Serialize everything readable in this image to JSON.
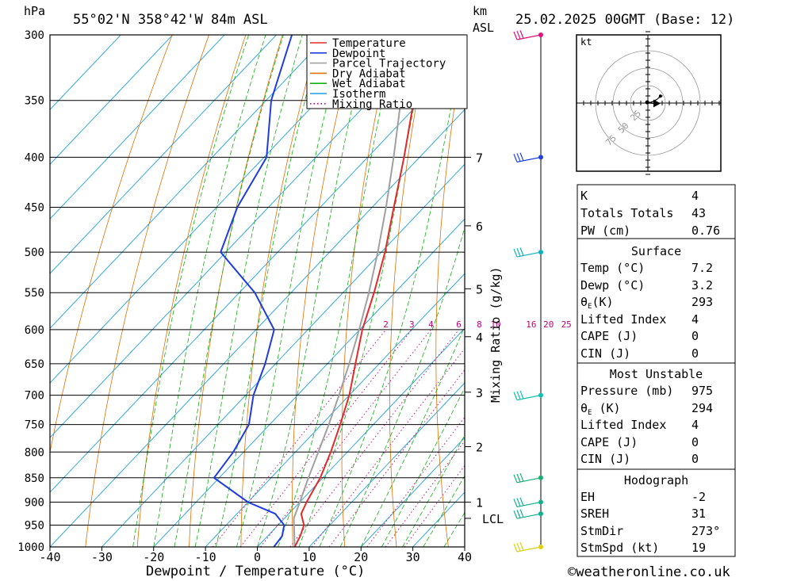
{
  "header": {
    "pressure_unit": "hPa",
    "location": "55°02'N  358°42'W  84m  ASL",
    "height_unit": "km",
    "height_ref": "ASL",
    "datetime": "25.02.2025  00GMT  (Base: 12)"
  },
  "footer": {
    "copyright": "©weatheronline.co.uk"
  },
  "chart_data": {
    "type": "line",
    "subtype": "skew-T log-P",
    "xlabel": "Dewpoint / Temperature (°C)",
    "ylabel": "hPa",
    "xlim": [
      -40,
      40
    ],
    "ylim": [
      1000,
      300
    ],
    "x_ticks": [
      "-40",
      "-30",
      "-20",
      "-10",
      "0",
      "10",
      "20",
      "30",
      "40"
    ],
    "pressure_levels": [
      300,
      350,
      400,
      450,
      500,
      550,
      600,
      650,
      700,
      750,
      800,
      850,
      900,
      950,
      1000
    ],
    "km_ticks": [
      {
        "km": "1",
        "p": 900
      },
      {
        "km": "2",
        "p": 790
      },
      {
        "km": "3",
        "p": 695
      },
      {
        "km": "4",
        "p": 610
      },
      {
        "km": "5",
        "p": 545
      },
      {
        "km": "6",
        "p": 470
      },
      {
        "km": "7",
        "p": 400
      }
    ],
    "lcl": {
      "label": "LCL",
      "p": 935
    },
    "mixing_ratio_axis_label": "Mixing Ratio (g/kg)",
    "mixing_ratio_labels": [
      "2",
      "3",
      "4",
      "6",
      "8",
      "10",
      "16",
      "20",
      "25"
    ],
    "legend": [
      {
        "name": "Temperature",
        "color": "#e32a2a",
        "style": "solid"
      },
      {
        "name": "Dewpoint",
        "color": "#1f3ce0",
        "style": "solid"
      },
      {
        "name": "Parcel Trajectory",
        "color": "#a0a0a0",
        "style": "solid"
      },
      {
        "name": "Dry Adiabat",
        "color": "#e07000",
        "style": "solid"
      },
      {
        "name": "Wet Adiabat",
        "color": "#10b010",
        "style": "solid"
      },
      {
        "name": "Isotherm",
        "color": "#1aa0e0",
        "style": "solid"
      },
      {
        "name": "Mixing Ratio",
        "color": "#c0007a",
        "style": "dotted"
      }
    ],
    "temperature": [
      {
        "p": 1000,
        "t": 7.2
      },
      {
        "p": 975,
        "t": 6.3
      },
      {
        "p": 950,
        "t": 5.0
      },
      {
        "p": 925,
        "t": 2.4
      },
      {
        "p": 900,
        "t": 1.3
      },
      {
        "p": 850,
        "t": -0.5
      },
      {
        "p": 800,
        "t": -3.2
      },
      {
        "p": 750,
        "t": -6.4
      },
      {
        "p": 700,
        "t": -10.0
      },
      {
        "p": 650,
        "t": -14.6
      },
      {
        "p": 600,
        "t": -19.5
      },
      {
        "p": 550,
        "t": -24.0
      },
      {
        "p": 500,
        "t": -29.3
      },
      {
        "p": 450,
        "t": -35.8
      },
      {
        "p": 400,
        "t": -43.0
      },
      {
        "p": 350,
        "t": -51.5
      },
      {
        "p": 325,
        "t": -53.0
      },
      {
        "p": 300,
        "t": -56.0
      }
    ],
    "dewpoint": [
      {
        "p": 1000,
        "t": 3.2
      },
      {
        "p": 975,
        "t": 2.8
      },
      {
        "p": 950,
        "t": 1.2
      },
      {
        "p": 925,
        "t": -2.6
      },
      {
        "p": 900,
        "t": -10.0
      },
      {
        "p": 850,
        "t": -21.0
      },
      {
        "p": 800,
        "t": -22.0
      },
      {
        "p": 750,
        "t": -24.0
      },
      {
        "p": 700,
        "t": -28.5
      },
      {
        "p": 650,
        "t": -32.0
      },
      {
        "p": 600,
        "t": -36.5
      },
      {
        "p": 550,
        "t": -47.0
      },
      {
        "p": 500,
        "t": -61.0
      },
      {
        "p": 450,
        "t": -66.0
      },
      {
        "p": 400,
        "t": -69.5
      },
      {
        "p": 350,
        "t": -79.0
      },
      {
        "p": 300,
        "t": -87.0
      }
    ],
    "parcel": [
      {
        "p": 1000,
        "t": 7.2
      },
      {
        "p": 935,
        "t": 1.8
      },
      {
        "p": 900,
        "t": 0.0
      },
      {
        "p": 850,
        "t": -2.8
      },
      {
        "p": 800,
        "t": -5.6
      },
      {
        "p": 750,
        "t": -8.6
      },
      {
        "p": 700,
        "t": -12.0
      },
      {
        "p": 650,
        "t": -15.8
      },
      {
        "p": 600,
        "t": -20.1
      },
      {
        "p": 550,
        "t": -25.0
      },
      {
        "p": 500,
        "t": -30.7
      },
      {
        "p": 450,
        "t": -37.3
      },
      {
        "p": 400,
        "t": -45.0
      },
      {
        "p": 350,
        "t": -54.0
      },
      {
        "p": 300,
        "t": -64.5
      }
    ],
    "hodograph": {
      "unit": "kt",
      "ring_labels": [
        "25",
        "50",
        "75"
      ],
      "ring_speeds": [
        25,
        50,
        75
      ],
      "trace": [
        {
          "u": -1,
          "v": 1
        },
        {
          "u": 4,
          "v": 1
        },
        {
          "u": 9,
          "v": 3
        },
        {
          "u": 14,
          "v": 6
        },
        {
          "u": 15,
          "v": 7
        },
        {
          "u": 16,
          "v": 8
        },
        {
          "u": 19,
          "v": 9
        },
        {
          "u": 20,
          "v": 10
        },
        {
          "u": 18,
          "v": 10
        }
      ],
      "storm_motion": {
        "dir_deg": 273,
        "speed_kt": 19
      }
    },
    "wind_barbs": [
      {
        "p": 300,
        "color": "#e0107a"
      },
      {
        "p": 400,
        "color": "#2040e0"
      },
      {
        "p": 500,
        "color": "#10b0c0"
      },
      {
        "p": 700,
        "color": "#10c0b0"
      },
      {
        "p": 850,
        "color": "#10b070"
      },
      {
        "p": 900,
        "color": "#10b090"
      },
      {
        "p": 925,
        "color": "#10b090"
      },
      {
        "p": 1000,
        "color": "#e0d010"
      }
    ]
  },
  "indices": {
    "k_label": "K",
    "k_value": "4",
    "tt_label": "Totals Totals",
    "tt_value": "43",
    "pw_label": "PW (cm)",
    "pw_value": "0.76",
    "surface_title": "Surface",
    "s_temp_label": "Temp (°C)",
    "s_temp_value": "7.2",
    "s_dewp_label": "Dewp (°C)",
    "s_dewp_value": "3.2",
    "s_thetae_label": "θ",
    "s_thetae_sub": "E",
    "s_thetae_unit": "(K)",
    "s_thetae_value": "293",
    "s_li_label": "Lifted Index",
    "s_li_value": "4",
    "s_cape_label": "CAPE (J)",
    "s_cape_value": "0",
    "s_cin_label": "CIN (J)",
    "s_cin_value": "0",
    "mu_title": "Most Unstable",
    "mu_pres_label": "Pressure (mb)",
    "mu_pres_value": "975",
    "mu_thetae_label": "θ",
    "mu_thetae_sub": "E",
    "mu_thetae_unit": " (K)",
    "mu_thetae_value": "294",
    "mu_li_label": "Lifted Index",
    "mu_li_value": "4",
    "mu_cape_label": "CAPE (J)",
    "mu_cape_value": "0",
    "mu_cin_label": "CIN (J)",
    "mu_cin_value": "0",
    "hodo_title": "Hodograph",
    "eh_label": "EH",
    "eh_value": "-2",
    "sreh_label": "SREH",
    "sreh_value": "31",
    "stmdir_label": "StmDir",
    "stmdir_value": "273°",
    "stmspd_label": "StmSpd (kt)",
    "stmspd_value": "19"
  }
}
